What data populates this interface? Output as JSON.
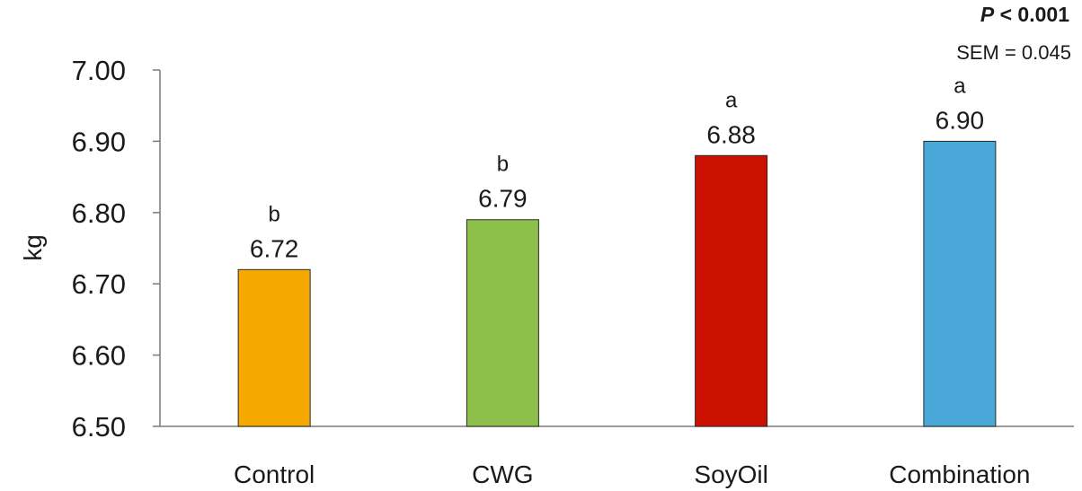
{
  "chart_data": {
    "type": "bar",
    "categories": [
      "Control",
      "CWG",
      "SoyOil",
      "Combination"
    ],
    "values": [
      6.72,
      6.79,
      6.88,
      6.9
    ],
    "value_labels": [
      "6.72",
      "6.79",
      "6.88",
      "6.90"
    ],
    "significance_letters": [
      "b",
      "b",
      "a",
      "a"
    ],
    "colors": [
      "#f5a800",
      "#8cc04b",
      "#cc1100",
      "#4aa8d8"
    ],
    "ylabel": "kg",
    "ylim": [
      6.5,
      7.0
    ],
    "yticks": [
      6.5,
      6.6,
      6.7,
      6.8,
      6.9,
      7.0
    ],
    "ytick_labels": [
      "6.50",
      "6.60",
      "6.70",
      "6.80",
      "6.90",
      "7.00"
    ],
    "annotations": {
      "p_symbol": "P",
      "p_rest": " < 0.001",
      "sem": "SEM = 0.045"
    },
    "grid": false,
    "legend": "none"
  }
}
